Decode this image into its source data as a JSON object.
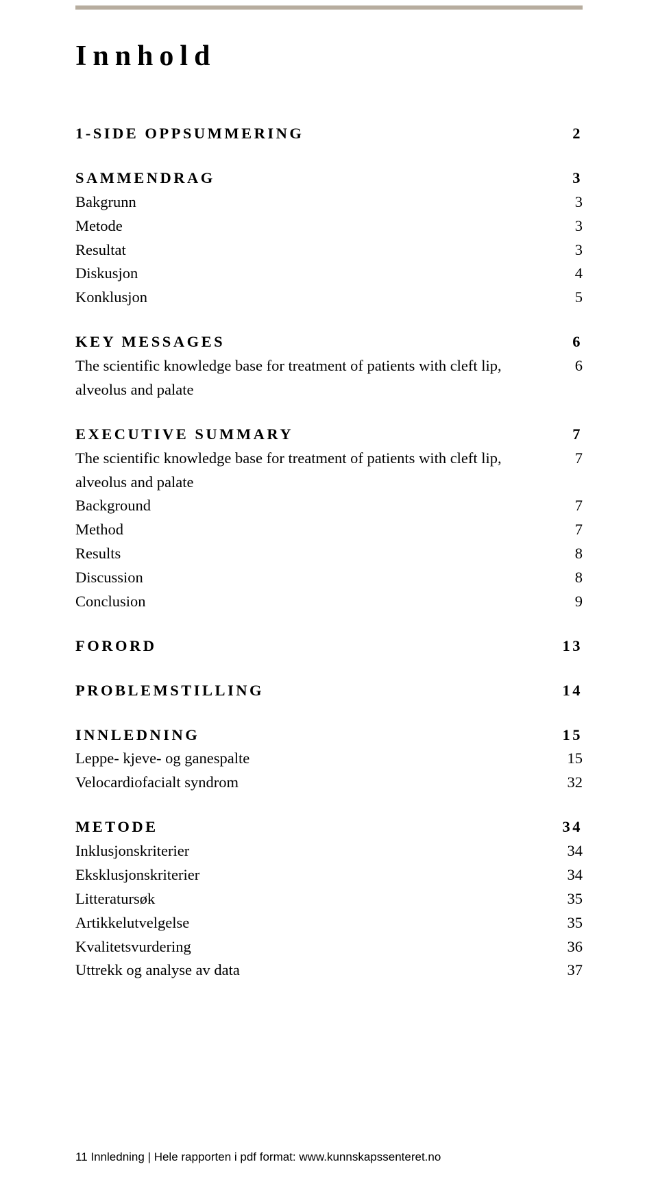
{
  "title": "Innhold",
  "sections": [
    {
      "label": "1-SIDE OPPSUMMERING",
      "page": "2",
      "items": []
    },
    {
      "label": "SAMMENDRAG",
      "page": "3",
      "items": [
        {
          "label": "Bakgrunn",
          "page": "3"
        },
        {
          "label": "Metode",
          "page": "3"
        },
        {
          "label": "Resultat",
          "page": "3"
        },
        {
          "label": "Diskusjon",
          "page": "4"
        },
        {
          "label": "Konklusjon",
          "page": "5"
        }
      ]
    },
    {
      "label": "KEY MESSAGES",
      "page": "6",
      "items": [
        {
          "label": "The scientific knowledge base for treatment of patients with cleft lip, alveolus and palate",
          "page": "6"
        }
      ]
    },
    {
      "label": "EXECUTIVE SUMMARY",
      "page": "7",
      "items": [
        {
          "label": "The scientific knowledge base for treatment of patients with cleft lip, alveolus and palate",
          "page": "7"
        },
        {
          "label": "Background",
          "page": "7"
        },
        {
          "label": "Method",
          "page": "7"
        },
        {
          "label": "Results",
          "page": "8"
        },
        {
          "label": "Discussion",
          "page": "8"
        },
        {
          "label": "Conclusion",
          "page": "9"
        }
      ]
    },
    {
      "label": "FORORD",
      "page": "13",
      "items": []
    },
    {
      "label": "PROBLEMSTILLING",
      "page": "14",
      "items": []
    },
    {
      "label": "INNLEDNING",
      "page": "15",
      "items": [
        {
          "label": "Leppe- kjeve- og ganespalte",
          "page": "15"
        },
        {
          "label": "Velocardiofacialt syndrom",
          "page": "32"
        }
      ]
    },
    {
      "label": "METODE",
      "page": "34",
      "items": [
        {
          "label": "Inklusjonskriterier",
          "page": "34"
        },
        {
          "label": "Eksklusjonskriterier",
          "page": "34"
        },
        {
          "label": "Litteratursøk",
          "page": "35"
        },
        {
          "label": "Artikkelutvelgelse",
          "page": "35"
        },
        {
          "label": "Kvalitetsvurdering",
          "page": "36"
        },
        {
          "label": "Uttrekk og analyse av data",
          "page": "37"
        }
      ]
    }
  ],
  "footer": "11  Innledning  |  Hele rapporten i pdf format: www.kunnskapssenteret.no",
  "colors": {
    "rule": "#b7ad9f",
    "text": "#000000",
    "background": "#ffffff"
  }
}
